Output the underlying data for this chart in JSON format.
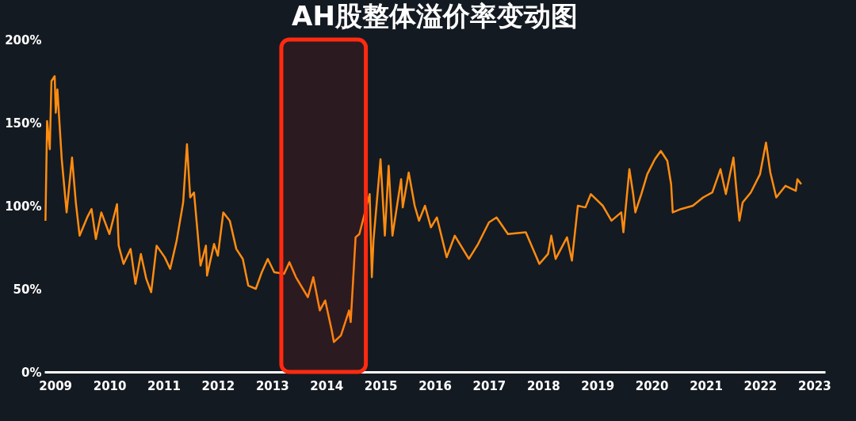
{
  "chart_data": {
    "type": "line",
    "title": "AH股整体溢价率变动图",
    "x": [
      2008.82,
      2008.85,
      2008.9,
      2008.93,
      2008.99,
      2009.01,
      2009.04,
      2009.12,
      2009.21,
      2009.31,
      2009.38,
      2009.45,
      2009.59,
      2009.67,
      2009.75,
      2009.85,
      2010.0,
      2010.14,
      2010.17,
      2010.26,
      2010.39,
      2010.48,
      2010.58,
      2010.68,
      2010.77,
      2010.87,
      2011.02,
      2011.12,
      2011.24,
      2011.36,
      2011.43,
      2011.49,
      2011.56,
      2011.68,
      2011.78,
      2011.8,
      2011.93,
      2012.0,
      2012.1,
      2012.22,
      2012.34,
      2012.46,
      2012.56,
      2012.7,
      2012.81,
      2012.92,
      2013.04,
      2013.22,
      2013.32,
      2013.44,
      2013.66,
      2013.76,
      2013.88,
      2013.98,
      2014.1,
      2014.14,
      2014.27,
      2014.42,
      2014.45,
      2014.54,
      2014.61,
      2014.8,
      2014.84,
      2014.87,
      2015.0,
      2015.08,
      2015.15,
      2015.22,
      2015.38,
      2015.41,
      2015.52,
      2015.63,
      2015.71,
      2015.82,
      2015.93,
      2016.04,
      2016.22,
      2016.37,
      2016.63,
      2016.8,
      2017.0,
      2017.14,
      2017.35,
      2017.68,
      2017.93,
      2018.09,
      2018.15,
      2018.23,
      2018.44,
      2018.53,
      2018.64,
      2018.78,
      2018.88,
      2019.1,
      2019.26,
      2019.44,
      2019.48,
      2019.59,
      2019.66,
      2019.7,
      2019.81,
      2019.92,
      2020.06,
      2020.17,
      2020.29,
      2020.36,
      2020.39,
      2020.54,
      2020.76,
      2020.95,
      2021.12,
      2021.27,
      2021.37,
      2021.51,
      2021.56,
      2021.62,
      2021.68,
      2021.83,
      2022.0,
      2022.11,
      2022.19,
      2022.3,
      2022.47,
      2022.66,
      2022.69,
      2022.76
    ],
    "series": [
      {
        "color": "#ff8c10",
        "values": [
          91,
          151,
          134,
          175,
          178,
          156,
          170,
          128,
          96,
          129,
          102,
          82,
          93,
          98,
          80,
          96,
          83,
          101,
          76,
          65,
          74,
          53,
          71,
          56,
          48,
          76,
          69,
          62,
          79,
          102,
          137,
          105,
          108,
          64,
          76,
          58,
          77,
          70,
          96,
          91,
          74,
          68,
          52,
          50,
          60,
          68,
          60,
          59,
          66,
          57,
          45,
          57,
          37,
          43,
          25,
          18,
          22,
          37,
          30,
          81,
          83,
          107,
          57,
          79,
          128,
          82,
          124,
          82,
          116,
          99,
          120,
          100,
          91,
          100,
          87,
          93,
          69,
          82,
          68,
          77,
          90,
          93,
          83,
          84,
          65,
          71,
          82,
          68,
          81,
          67,
          100,
          99,
          107,
          100,
          91,
          96,
          84,
          122,
          107,
          96,
          107,
          119,
          128,
          133,
          127,
          113,
          96,
          98,
          100,
          105,
          108,
          122,
          107,
          129,
          111,
          91,
          102,
          108,
          119,
          138,
          120,
          105,
          112,
          109,
          116,
          113
        ]
      }
    ],
    "xlim": [
      2008.8,
      2023.2
    ],
    "xticks": [
      2009,
      2010,
      2011,
      2012,
      2013,
      2014,
      2015,
      2016,
      2017,
      2018,
      2019,
      2020,
      2021,
      2022,
      2023
    ],
    "ylim": [
      0,
      200
    ],
    "yticks": [
      {
        "value": 0,
        "label": "0%"
      },
      {
        "value": 50,
        "label": "50%"
      },
      {
        "value": 100,
        "label": "100%"
      },
      {
        "value": 150,
        "label": "150%"
      },
      {
        "value": 200,
        "label": "200%"
      }
    ],
    "bands": [
      {
        "axis": "x",
        "from": 2013.17,
        "to": 2014.73,
        "color": "#ff2a10"
      }
    ],
    "grid": false
  }
}
